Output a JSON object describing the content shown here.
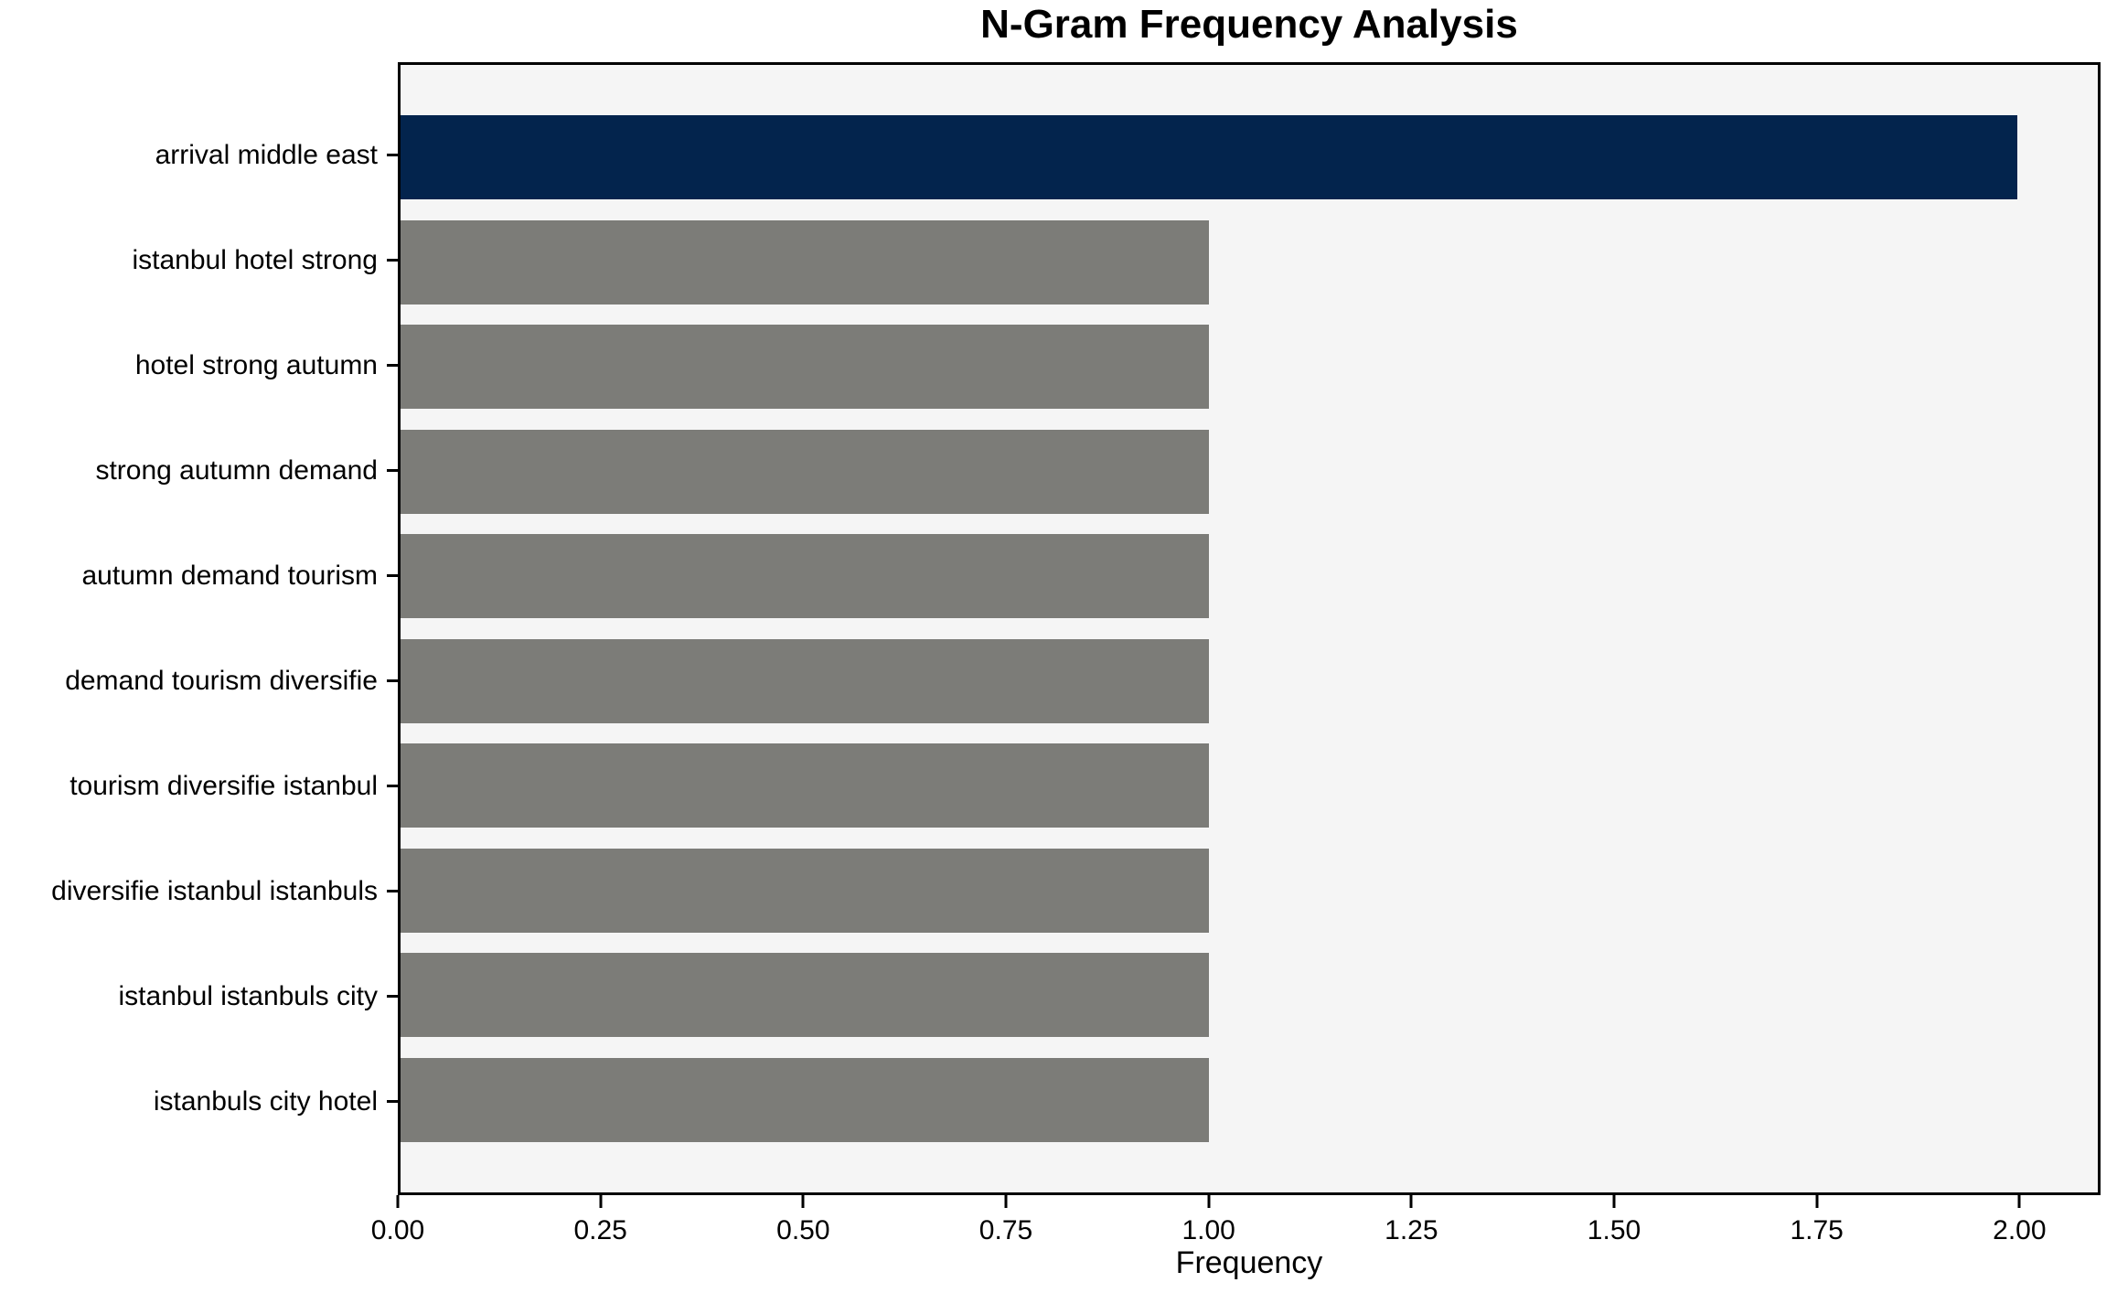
{
  "title": "N-Gram Frequency Analysis",
  "chart_data": {
    "type": "bar",
    "orientation": "horizontal",
    "title": "N-Gram Frequency Analysis",
    "categories": [
      "arrival middle east",
      "istanbul hotel strong",
      "hotel strong autumn",
      "strong autumn demand",
      "autumn demand tourism",
      "demand tourism diversifie",
      "tourism diversifie istanbul",
      "diversifie istanbul istanbuls",
      "istanbul istanbuls city",
      "istanbuls city hotel"
    ],
    "values": [
      2,
      1,
      1,
      1,
      1,
      1,
      1,
      1,
      1,
      1
    ],
    "xlabel": "Frequency",
    "ylabel": "",
    "xlim": [
      0,
      2.1
    ],
    "x_tick_values": [
      0,
      0.25,
      0.5,
      0.75,
      1,
      1.25,
      1.5,
      1.75,
      2
    ],
    "x_tick_labels": [
      "0.00",
      "0.25",
      "0.50",
      "0.75",
      "1.00",
      "1.25",
      "1.50",
      "1.75",
      "2.00"
    ],
    "grid": false,
    "legend": false,
    "highlight_index": 0,
    "colors": {
      "highlight_bar": "#03244d",
      "default_bar": "#7c7c78",
      "plot_background": "#f5f5f5",
      "figure_background": "#ffffff",
      "axis": "#000000",
      "text": "#000000"
    }
  }
}
